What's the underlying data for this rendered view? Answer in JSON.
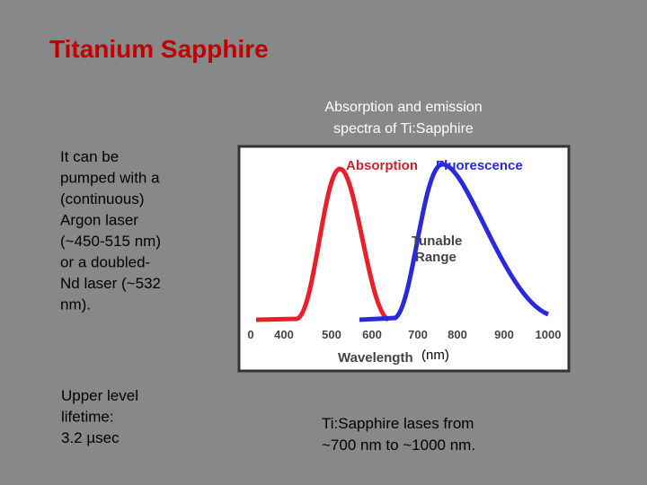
{
  "slide": {
    "title": "Titanium Sapphire",
    "caption": [
      "Absorption and emission",
      "spectra of Ti:Sapphire"
    ],
    "left_text": [
      "It can be",
      "pumped with a",
      "(continuous)",
      "Argon laser",
      "(~450-515 nm)",
      "or a doubled-",
      "Nd laser (~532",
      "nm)."
    ],
    "lifetime": [
      "Upper level",
      "lifetime:",
      "3.2 µsec"
    ],
    "conclusion": [
      "Ti:Sapphire lases from",
      "~700 nm to ~1000 nm."
    ],
    "figure": {
      "absorption_label": "Absorption",
      "fluorescence_label": "Fluorescence",
      "range_label": [
        "Tunable",
        "Range"
      ],
      "axis_ticks": [
        "0",
        "400",
        "500",
        "600",
        "700",
        "800",
        "900",
        "1000"
      ],
      "axis_label": "Wavelength",
      "unit": "(nm)"
    }
  }
}
